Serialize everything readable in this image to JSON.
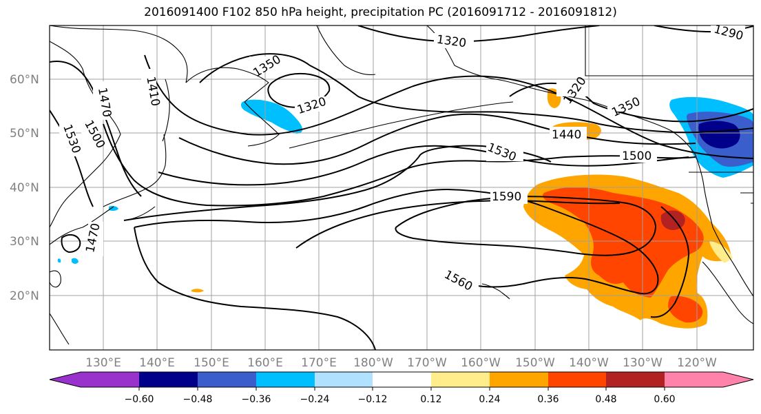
{
  "title": "2016091400 F102 850 hPa height, precipitation PC (2016091712 - 2016091812)",
  "lat_labels": [
    "60°N",
    "50°N",
    "40°N",
    "30°N",
    "20°N"
  ],
  "lon_labels": [
    "130°E",
    "140°E",
    "150°E",
    "160°E",
    "170°E",
    "180°W",
    "170°W",
    "160°W",
    "150°W",
    "140°W",
    "130°W",
    "120°W"
  ],
  "contour_labels": [
    "1320",
    "1290",
    "1350",
    "1320",
    "1320",
    "1410",
    "1470",
    "1500",
    "1530",
    "1350",
    "1440",
    "1530",
    "1500",
    "1590",
    "1560",
    "1470"
  ],
  "colorbar": {
    "colors": [
      "#9932CC",
      "#00008B",
      "#3A5FCD",
      "#00BFFF",
      "#B0E2FF",
      "#FFFFFF",
      "#FFEC8B",
      "#FFA500",
      "#FF4500",
      "#B22222",
      "#FF82AB"
    ],
    "tick_labels": [
      "−0.60",
      "−0.48",
      "−0.36",
      "−0.24",
      "−0.12",
      "0.12",
      "0.24",
      "0.36",
      "0.48",
      "0.60"
    ]
  },
  "colors": {
    "grid": "#a0a0a0",
    "contour": "#000000",
    "label_gray": "#808080"
  }
}
